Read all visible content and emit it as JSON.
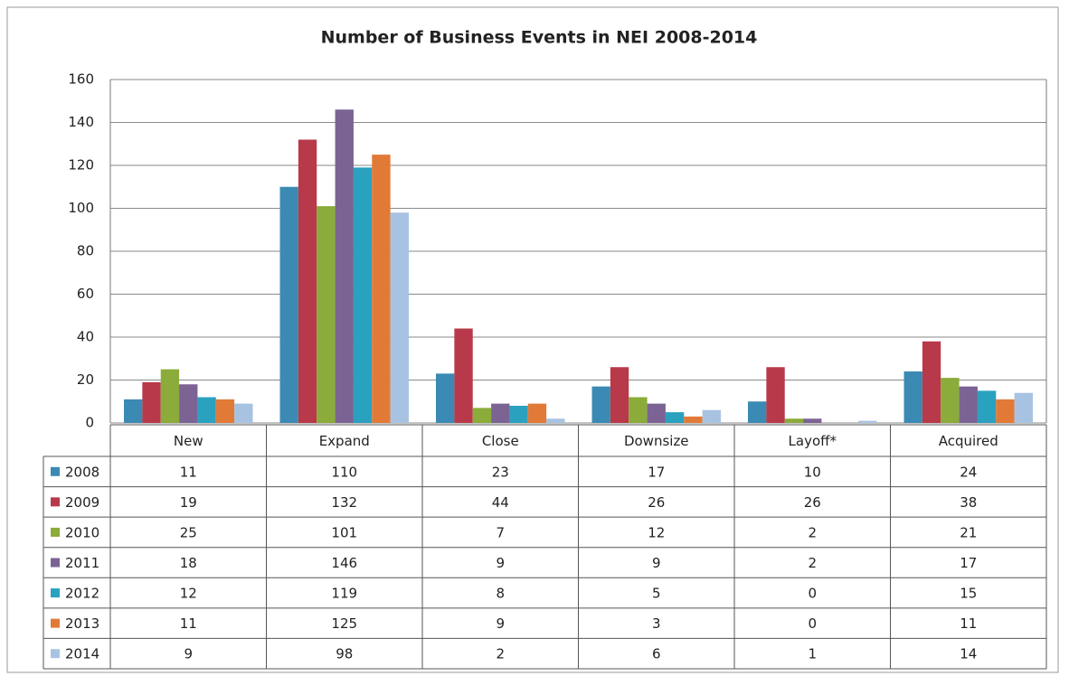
{
  "chart_data": {
    "type": "bar",
    "title": "Number of Business Events in NEI 2008-2014",
    "categories": [
      "New",
      "Expand",
      "Close",
      "Downsize",
      "Layoff*",
      "Acquired"
    ],
    "series": [
      {
        "name": "2008",
        "color": "#3b8ab3",
        "values": [
          11,
          110,
          23,
          17,
          10,
          24
        ]
      },
      {
        "name": "2009",
        "color": "#b8394a",
        "values": [
          19,
          132,
          44,
          26,
          26,
          38
        ]
      },
      {
        "name": "2010",
        "color": "#8bab3a",
        "values": [
          25,
          101,
          7,
          12,
          2,
          21
        ]
      },
      {
        "name": "2011",
        "color": "#7b6393",
        "values": [
          18,
          146,
          9,
          9,
          2,
          17
        ]
      },
      {
        "name": "2012",
        "color": "#2aa1bf",
        "values": [
          12,
          119,
          8,
          5,
          0,
          15
        ]
      },
      {
        "name": "2013",
        "color": "#e27a37",
        "values": [
          11,
          125,
          9,
          3,
          0,
          11
        ]
      },
      {
        "name": "2014",
        "color": "#a8c3e2",
        "values": [
          9,
          98,
          2,
          6,
          1,
          14
        ]
      }
    ],
    "ylim": [
      0,
      160
    ],
    "yticks": [
      0,
      20,
      40,
      60,
      80,
      100,
      120,
      140,
      160
    ],
    "grid": true
  }
}
